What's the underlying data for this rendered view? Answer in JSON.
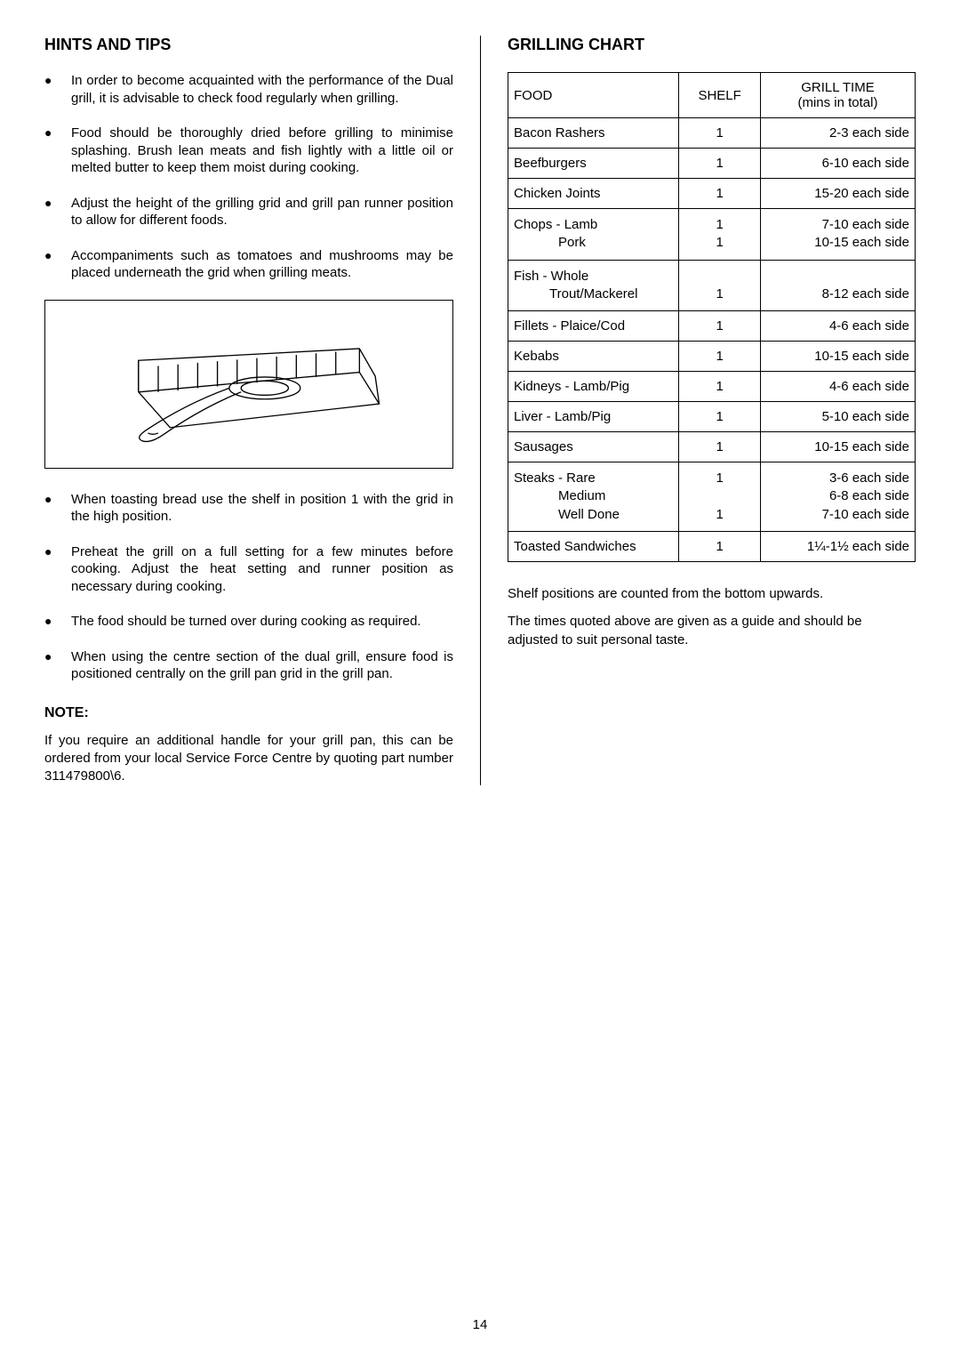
{
  "left": {
    "title": "HINTS AND TIPS",
    "bullets": [
      "In order to become acquainted with the performance of the Dual grill, it is advisable to check food regularly when grilling.",
      "Food should be thoroughly dried before grilling to minimise splashing.  Brush lean meats and fish lightly with a little oil or melted butter to keep them moist during cooking.",
      "Adjust the height of the grilling grid and grill pan runner position to allow for different foods.",
      "Accompaniments such as tomatoes and mushrooms may be placed underneath the grid when grilling meats."
    ],
    "bullets2": [
      "When toasting bread use the shelf in position 1 with the grid in the high position.",
      "Preheat the grill on a full setting for a few minutes before cooking.  Adjust the heat setting and runner position as necessary during cooking.",
      "The food should be turned over during cooking as required.",
      "When using the centre section of the dual grill, ensure food is positioned centrally on the grill pan grid in the grill pan."
    ],
    "note_title": "NOTE:",
    "note_text": "If you require an additional handle for your grill pan, this can be ordered from your local Service Force Centre by quoting part number 311479800\\6."
  },
  "right": {
    "title": "GRILLING CHART",
    "headers": {
      "food": "FOOD",
      "shelf": "SHELF",
      "time": "GRILL TIME\n(mins in total)"
    },
    "rows": [
      {
        "food": "Bacon Rashers",
        "shelf": "1",
        "time": "2-3 each side"
      },
      {
        "food": "Beefburgers",
        "shelf": "1",
        "time": "6-10 each side"
      },
      {
        "food": "Chicken Joints",
        "shelf": "1",
        "time": "15-20 each side"
      },
      {
        "food_html": "Chops - Lamb<br><span class=\"indent\">Pork</span>",
        "shelf_html": "1<br>1",
        "time_html": "7-10 each side<br>10-15 each side"
      },
      {
        "food_html": "Fish - Whole<br><span class=\"sm-indent\">Trout/Mackerel</span>",
        "shelf_html": "<br>1",
        "time_html": "<br>8-12 each side"
      },
      {
        "food": "Fillets - Plaice/Cod",
        "shelf": "1",
        "time": "4-6 each side"
      },
      {
        "food": "Kebabs",
        "shelf": "1",
        "time": "10-15 each side"
      },
      {
        "food": "Kidneys - Lamb/Pig",
        "shelf": "1",
        "time": "4-6 each side"
      },
      {
        "food": "Liver - Lamb/Pig",
        "shelf": "1",
        "time": "5-10 each side"
      },
      {
        "food": "Sausages",
        "shelf": "1",
        "time": "10-15 each side"
      },
      {
        "food_html": "Steaks - Rare<br><span class=\"indent\">Medium</span><br><span class=\"indent\">Well Done</span>",
        "shelf_html": "1<br><br>1",
        "time_html": "3-6 each side<br>6-8 each side<br>7-10 each side"
      },
      {
        "food": "Toasted Sandwiches",
        "shelf": "1",
        "time": "1¼-1½ each side"
      }
    ],
    "post": [
      "Shelf positions are counted from the bottom upwards.",
      "The times quoted above are given as a guide and should be adjusted to suit personal taste."
    ]
  },
  "page_number": "14",
  "colors": {
    "text": "#000000",
    "background": "#ffffff",
    "border": "#000000"
  }
}
